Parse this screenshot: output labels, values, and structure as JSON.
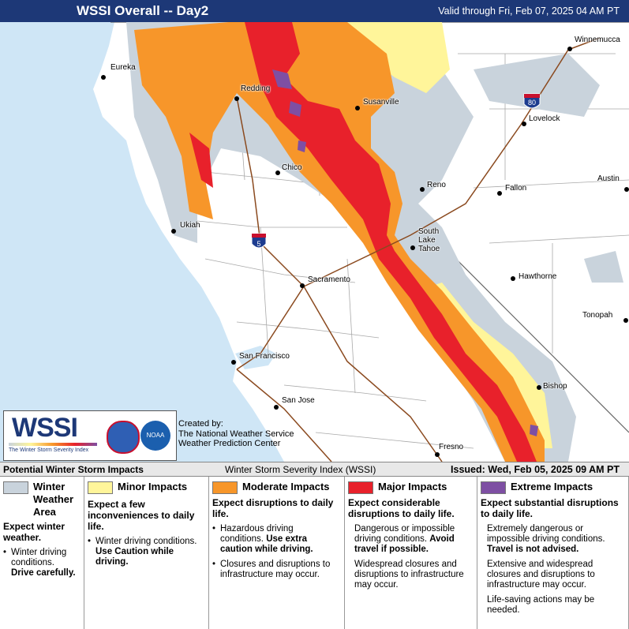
{
  "header": {
    "title": "WSSI Overall -- Day2",
    "valid": "Valid through Fri, Feb 07, 2025 04 AM PT"
  },
  "map": {
    "cities": [
      "Eureka",
      "Redding",
      "Susanville",
      "Winnemucca",
      "Lovelock",
      "Chico",
      "Reno",
      "Fallon",
      "Austin",
      "Ukiah",
      "South Lake Tahoe",
      "Sacramento",
      "Hawthorne",
      "Tonopah",
      "San Francisco",
      "Bishop",
      "San Jose",
      "Fresno"
    ],
    "highways": [
      "80",
      "5"
    ]
  },
  "logo": {
    "name": "WSSI",
    "subtitle": "The Winter Storm Severity Index",
    "noaa": "NOAA",
    "created_by": "Created by:",
    "org1": "The National Weather Service",
    "org2": "Weather Prediction Center"
  },
  "strip": {
    "left": "Potential Winter Storm Impacts",
    "center": "Winter Storm Severity Index (WSSI)",
    "right": "Issued: Wed, Feb 05, 2025 09 AM PT"
  },
  "legend": {
    "columns": [
      {
        "title": "Winter Weather Area",
        "color": "#c9d3dc",
        "description": "Expect winter weather.",
        "bullets": [
          [
            {
              "text": "Winter driving conditions. ",
              "bold": false
            },
            {
              "text": "Drive carefully.",
              "bold": true
            }
          ]
        ]
      },
      {
        "title": "Minor Impacts",
        "color": "#fff59a",
        "description": "Expect a few inconveniences to daily life.",
        "bullets": [
          [
            {
              "text": "Winter driving conditions. ",
              "bold": false
            },
            {
              "text": "Use Caution while driving.",
              "bold": true
            }
          ]
        ]
      },
      {
        "title": "Moderate Impacts",
        "color": "#f7962a",
        "description": "Expect disruptions to daily life.",
        "bullets": [
          [
            {
              "text": "Hazardous driving conditions. ",
              "bold": false
            },
            {
              "text": "Use extra caution while driving.",
              "bold": true
            }
          ],
          [
            {
              "text": "Closures and disruptions to infrastructure may occur.",
              "bold": false
            }
          ]
        ]
      },
      {
        "title": "Major Impacts",
        "color": "#e8212b",
        "description": "Expect considerable disruptions to daily life.",
        "bullets": [
          [
            {
              "text": "Dangerous or impossible driving conditions. ",
              "bold": false
            },
            {
              "text": "Avoid travel if possible.",
              "bold": true
            }
          ],
          [
            {
              "text": "Widespread closures and disruptions to infrastructure may occur.",
              "bold": false
            }
          ]
        ]
      },
      {
        "title": "Extreme Impacts",
        "color": "#7e4fa3",
        "description": "Expect substantial disruptions to daily life.",
        "bullets": [
          [
            {
              "text": "Extremely dangerous or impossible driving conditions. ",
              "bold": false
            },
            {
              "text": "Travel is not advised.",
              "bold": true
            }
          ],
          [
            {
              "text": "Extensive and widespread closures and disruptions to infrastructure may occur.",
              "bold": false
            }
          ],
          [
            {
              "text": "Life-saving actions may be needed.",
              "bold": false
            }
          ]
        ]
      }
    ]
  }
}
